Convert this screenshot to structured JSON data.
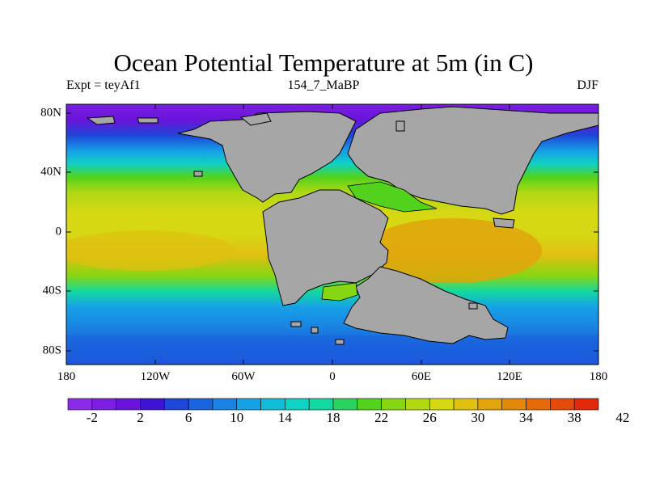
{
  "title": "Ocean Potential Temperature at 5m (in C)",
  "subtitle_left": "Expt = teyAf1",
  "subtitle_center": "154_7_MaBP",
  "subtitle_right": "DJF",
  "lat_ticks": [
    "80N",
    "40N",
    "0",
    "40S",
    "80S"
  ],
  "lon_ticks": [
    "180",
    "120W",
    "60W",
    "0",
    "60E",
    "120E",
    "180"
  ],
  "colorbar": {
    "labels": [
      "-2",
      "2",
      "6",
      "10",
      "14",
      "18",
      "22",
      "26",
      "30",
      "34",
      "38",
      "42"
    ],
    "colors": [
      "#8a2be6",
      "#7a1fe0",
      "#6a14da",
      "#3c14d2",
      "#1e46d8",
      "#1a64de",
      "#1a82e2",
      "#16a0e6",
      "#12bcd8",
      "#10d2c2",
      "#12d8a0",
      "#2ad260",
      "#52d21c",
      "#86d614",
      "#b2d814",
      "#d6d814",
      "#e0c010",
      "#e0a40c",
      "#e2880c",
      "#e46a0a",
      "#e44a0a",
      "#e22a0a"
    ],
    "land_color": "#a6a6a6"
  }
}
